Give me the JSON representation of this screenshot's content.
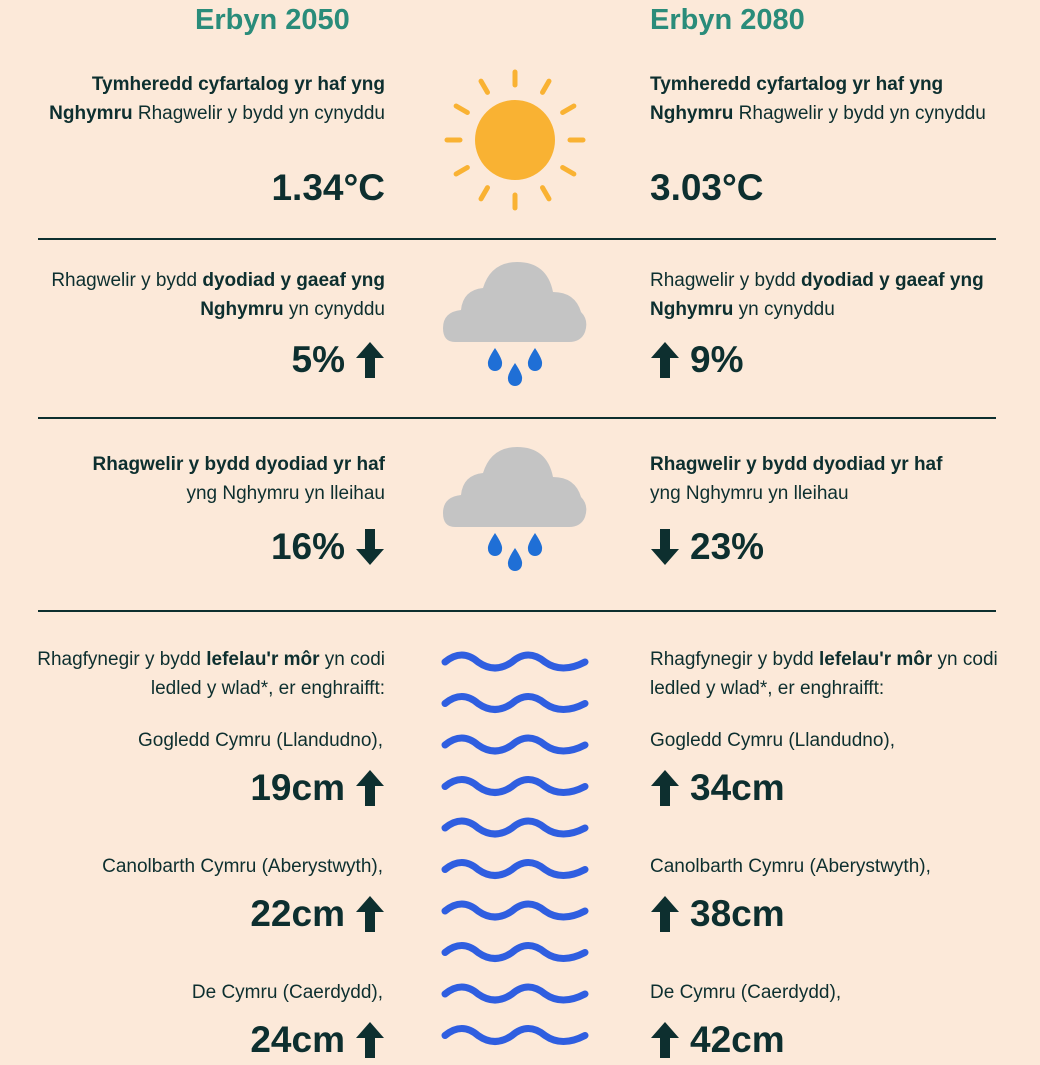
{
  "headers": [
    "Erbyn  2050",
    "Erbyn 2080"
  ],
  "sections": [
    {
      "icon": "sun",
      "left": {
        "text": [
          {
            "text": "Tymheredd cyfartalog yr haf yng Nghymru",
            "bold": true
          },
          {
            "text": " Rhagwelir y bydd yn cynyddu",
            "bold": false
          }
        ],
        "value": "1.34°C"
      },
      "right": {
        "text": [
          {
            "text": "Tymheredd cyfartalog yr haf yng Nghymru",
            "bold": true
          },
          {
            "text": " Rhagwelir y bydd yn cynyddu",
            "bold": false
          }
        ],
        "value": "3.03°C"
      }
    },
    {
      "icon": "rain",
      "arrow": "up",
      "left": {
        "text": [
          {
            "text": "Rhagwelir y bydd ",
            "bold": false
          },
          {
            "text": "dyodiad y gaeaf yng Nghymru",
            "bold": true
          },
          {
            "text": " yn cynyddu",
            "bold": false
          }
        ],
        "value": "5%"
      },
      "right": {
        "text": [
          {
            "text": "Rhagwelir y bydd ",
            "bold": false
          },
          {
            "text": "dyodiad y gaeaf yng Nghymru",
            "bold": true
          },
          {
            "text": " yn cynyddu",
            "bold": false
          }
        ],
        "value": "9%"
      }
    },
    {
      "icon": "rain",
      "arrow": "down",
      "left": {
        "text": [
          {
            "text": "Rhagwelir y bydd dyodiad yr haf",
            "bold": true
          },
          {
            "text": " yng Nghymru yn lleihau",
            "bold": false
          }
        ],
        "value": "16%"
      },
      "right": {
        "text": [
          {
            "text": "Rhagwelir y bydd dyodiad yr haf",
            "bold": true
          },
          {
            "text": " yng Nghymru yn lleihau",
            "bold": false
          }
        ],
        "value": "23%"
      }
    },
    {
      "icon": "waves",
      "arrow": "up",
      "left": {
        "text": [
          {
            "text": "Rhagfynegir y bydd ",
            "bold": false
          },
          {
            "text": "lefelau'r môr",
            "bold": true
          },
          {
            "text": " yn codi ledled y wlad*, er enghraifft:",
            "bold": false
          }
        ],
        "items": [
          {
            "place": "Gogledd Cymru (Llandudno),",
            "value": "19cm"
          },
          {
            "place": "Canolbarth Cymru (Aberystwyth),",
            "value": "22cm"
          },
          {
            "place": "De Cymru (Caerdydd),",
            "value": "24cm"
          }
        ]
      },
      "right": {
        "text": [
          {
            "text": "Rhagfynegir y bydd ",
            "bold": false
          },
          {
            "text": "lefelau'r môr",
            "bold": true
          },
          {
            "text": " yn codi ledled y wlad*, er enghraifft:",
            "bold": false
          }
        ],
        "items": [
          {
            "place": "Gogledd Cymru (Llandudno),",
            "value": "34cm"
          },
          {
            "place": "Canolbarth Cymru (Aberystwyth),",
            "value": "38cm"
          },
          {
            "place": "De Cymru (Caerdydd),",
            "value": "42cm"
          }
        ]
      }
    }
  ]
}
